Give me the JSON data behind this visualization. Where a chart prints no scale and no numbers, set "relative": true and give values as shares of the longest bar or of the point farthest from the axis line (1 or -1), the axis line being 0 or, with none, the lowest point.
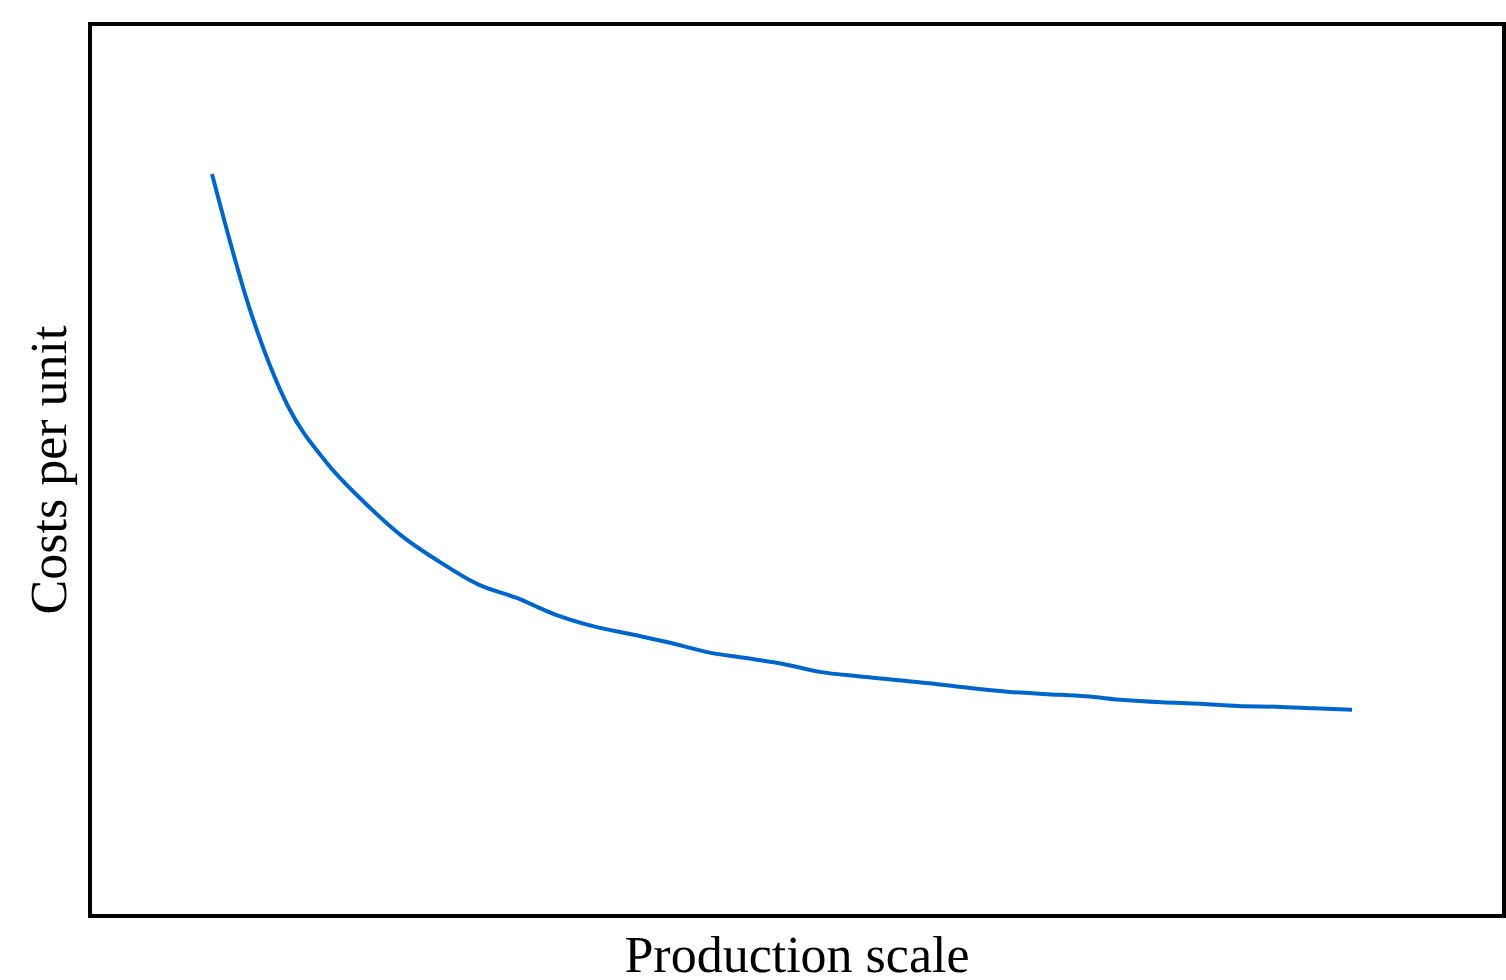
{
  "chart_data": {
    "type": "line",
    "relative": true,
    "xlabel": "Production scale",
    "ylabel": "Costs per unit",
    "categories": [
      null,
      null,
      null,
      null,
      null,
      null,
      null,
      null,
      null,
      null,
      null,
      null,
      null,
      null,
      null,
      null,
      null,
      null,
      null,
      null,
      null,
      null,
      null,
      null,
      null,
      null,
      null,
      null,
      null,
      null,
      null
    ],
    "series": [
      {
        "color": "#0066cc",
        "values": [
          1.0,
          0.817,
          0.687,
          0.612,
          0.558,
          0.512,
          0.477,
          0.447,
          0.429,
          0.407,
          0.391,
          0.38,
          0.369,
          0.356,
          0.348,
          0.34,
          0.329,
          0.323,
          0.318,
          0.313,
          0.307,
          0.302,
          0.299,
          0.296,
          0.291,
          0.288,
          0.286,
          0.283,
          0.282,
          0.28,
          0.278
        ]
      }
    ],
    "marker": "none",
    "line_style": "solid"
  }
}
